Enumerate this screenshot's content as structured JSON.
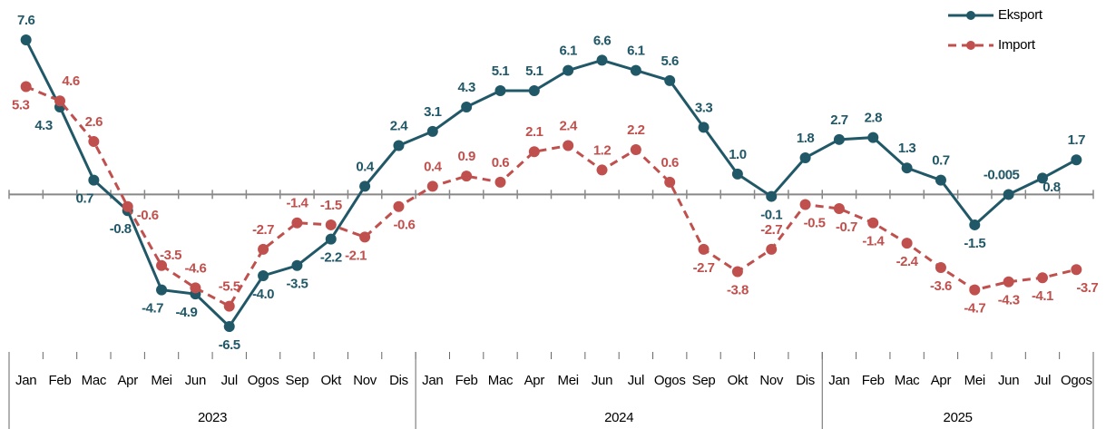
{
  "chart_data": {
    "type": "line",
    "groups": [
      {
        "label": "2023",
        "categories": [
          "Jan",
          "Feb",
          "Mac",
          "Apr",
          "Mei",
          "Jun",
          "Jul",
          "Ogos",
          "Sep",
          "Okt",
          "Nov",
          "Dis"
        ]
      },
      {
        "label": "2024",
        "categories": [
          "Jan",
          "Feb",
          "Mac",
          "Apr",
          "Mei",
          "Jun",
          "Jul",
          "Ogos",
          "Sep",
          "Okt",
          "Nov",
          "Dis"
        ]
      },
      {
        "label": "2025",
        "categories": [
          "Jan",
          "Feb",
          "Mac",
          "Apr",
          "Mei",
          "Jun",
          "Jul",
          "Ogos"
        ]
      }
    ],
    "series": [
      {
        "name": "Eksport",
        "color": "#215868",
        "dashed": false,
        "values": [
          7.6,
          4.3,
          0.7,
          -0.8,
          -4.7,
          -4.9,
          -6.5,
          -4.0,
          -3.5,
          -2.2,
          0.4,
          2.4,
          3.1,
          4.3,
          5.1,
          5.1,
          6.1,
          6.6,
          6.1,
          5.6,
          3.3,
          1.0,
          -0.1,
          1.8,
          2.7,
          2.8,
          1.3,
          0.7,
          -1.5,
          -0.005,
          0.8,
          1.7
        ],
        "value_labels": [
          "7.6",
          "4.3",
          "0.7",
          "-0.8",
          "-4.7",
          "-4.9",
          "-6.5",
          "-4.0",
          "-3.5",
          "-2.2",
          "0.4",
          "2.4",
          "3.1",
          "4.3",
          "5.1",
          "5.1",
          "6.1",
          "6.6",
          "6.1",
          "5.6",
          "3.3",
          "1.0",
          "-0.1",
          "1.8",
          "2.7",
          "2.8",
          "1.3",
          "0.7",
          "-1.5",
          "-0.005",
          "0.8",
          "1.7"
        ]
      },
      {
        "name": "Import",
        "color": "#c0504d",
        "dashed": true,
        "values": [
          5.3,
          4.6,
          2.6,
          -0.6,
          -3.5,
          -4.6,
          -5.5,
          -2.7,
          -1.4,
          -1.5,
          -2.1,
          -0.6,
          0.4,
          0.9,
          0.6,
          2.1,
          2.4,
          1.2,
          2.2,
          0.6,
          -2.7,
          -3.8,
          -2.7,
          -0.5,
          -0.7,
          -1.4,
          -2.4,
          -3.6,
          -4.7,
          -4.3,
          -4.1,
          -3.7
        ],
        "value_labels": [
          "5.3",
          "4.6",
          "2.6",
          "-0.6",
          "-3.5",
          "-4.6",
          "-5.5",
          "-2.7",
          "-1.4",
          "-1.5",
          "-2.1",
          "-0.6",
          "0.4",
          "0.9",
          "0.6",
          "2.1",
          "2.4",
          "1.2",
          "2.2",
          "0.6",
          "-2.7",
          "-3.8",
          "-2.7",
          "-0.5",
          "-0.7",
          "-1.4",
          "-2.4",
          "-3.6",
          "-4.7",
          "-4.3",
          "-4.1",
          "-3.7"
        ]
      }
    ],
    "legend": "top-right"
  }
}
